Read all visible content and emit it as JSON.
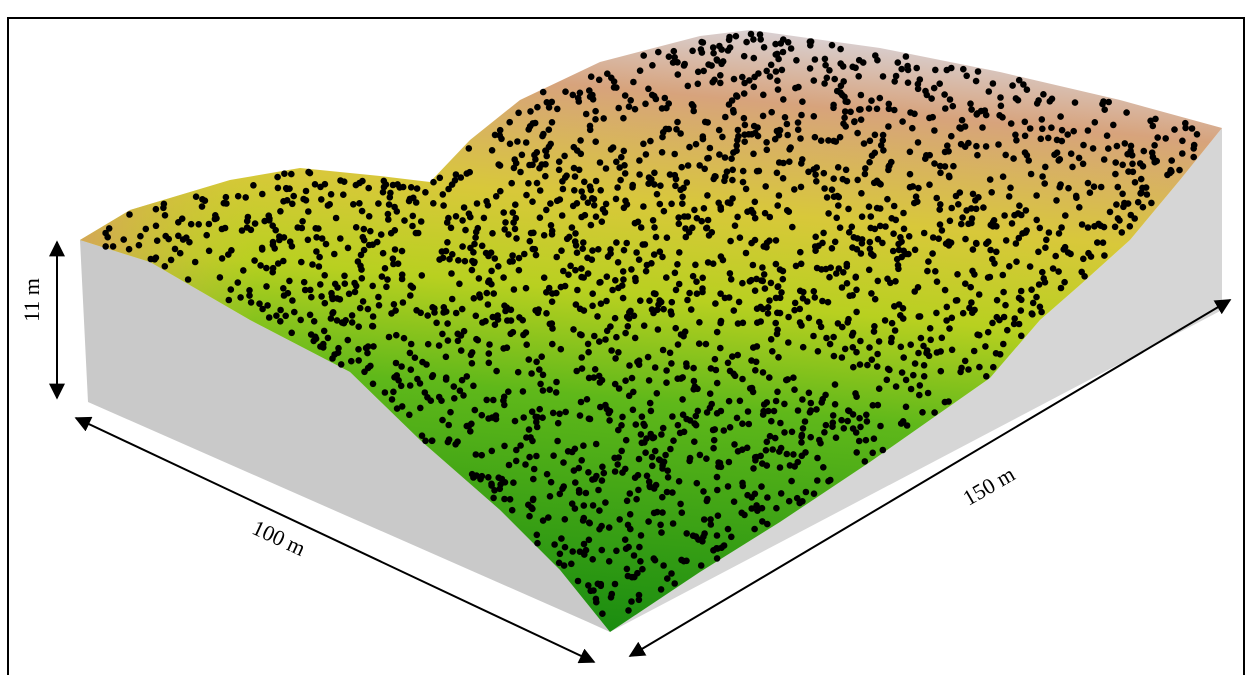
{
  "labels": {
    "height": "11 m",
    "width": "100 m",
    "length": "150 m"
  }
}
